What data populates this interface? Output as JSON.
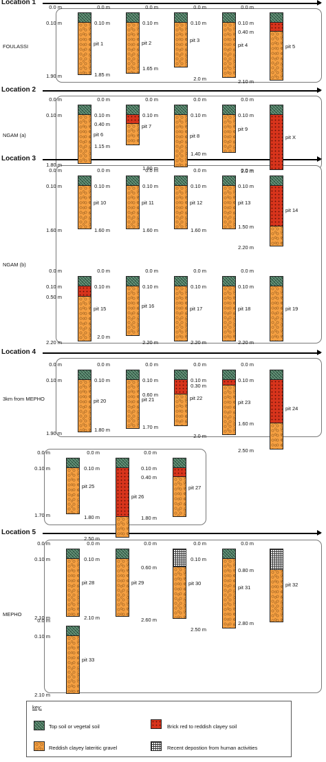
{
  "legend": {
    "title": "key:",
    "items": [
      {
        "kind": "topsoil",
        "label": "Top soil or vegetal soil"
      },
      {
        "kind": "clay",
        "label": "Brick red to reddish clayey soil"
      },
      {
        "kind": "gravel",
        "label": "Reddish clayey lateritic gravel"
      },
      {
        "kind": "recent",
        "label": "Recent depostion from human activities"
      }
    ]
  },
  "locations": [
    {
      "title": "Location 1",
      "site": "FOULASSI",
      "pits": [
        {
          "name": "pit 1",
          "labels": [
            "0.0 m",
            "0.10 m",
            "1.90 m"
          ],
          "layers": [
            {
              "kind": "topsoil",
              "to": 0.1
            },
            {
              "kind": "gravel",
              "to": 1.9
            }
          ]
        },
        {
          "name": "pit 2",
          "labels": [
            "0.0 m",
            "0.10 m",
            "1.85 m"
          ],
          "layers": [
            {
              "kind": "topsoil",
              "to": 0.1
            },
            {
              "kind": "gravel",
              "to": 1.85
            }
          ]
        },
        {
          "name": "pit 3",
          "labels": [
            "0.0 m",
            "0.10 m",
            "1.65 m"
          ],
          "layers": [
            {
              "kind": "topsoil",
              "to": 0.1
            },
            {
              "kind": "gravel",
              "to": 1.65
            }
          ]
        },
        {
          "name": "pit 4",
          "labels": [
            "0.0 m",
            "0.10 m",
            "2.0 m"
          ],
          "layers": [
            {
              "kind": "topsoil",
              "to": 0.1
            },
            {
              "kind": "gravel",
              "to": 2.0
            }
          ]
        },
        {
          "name": "pit 5",
          "labels": [
            "0.0 m",
            "0.10 m",
            "0.40 m",
            "2.10 m"
          ],
          "layers": [
            {
              "kind": "topsoil",
              "to": 0.1
            },
            {
              "kind": "clay",
              "to": 0.4
            },
            {
              "kind": "gravel",
              "to": 2.1
            }
          ]
        }
      ]
    },
    {
      "title": "Location 2",
      "site": "NGAM (a)",
      "pits": [
        {
          "name": "pit 6",
          "labels": [
            "0.0 m",
            "0.10 m",
            "1.80 m"
          ],
          "layers": [
            {
              "kind": "topsoil",
              "to": 0.1
            },
            {
              "kind": "gravel",
              "to": 1.8
            }
          ]
        },
        {
          "name": "pit 7",
          "labels": [
            "0.0 m",
            "0.10 m",
            "0.40 m",
            "1.15 m"
          ],
          "layers": [
            {
              "kind": "topsoil",
              "to": 0.1
            },
            {
              "kind": "clay",
              "to": 0.4
            },
            {
              "kind": "gravel",
              "to": 1.15
            }
          ]
        },
        {
          "name": "pit 8",
          "labels": [
            "0.0 m",
            "0.10 m",
            "1.90 m"
          ],
          "layers": [
            {
              "kind": "topsoil",
              "to": 0.1
            },
            {
              "kind": "gravel",
              "to": 1.9
            }
          ]
        },
        {
          "name": "pit 9",
          "labels": [
            "0.0 m",
            "0.10 m",
            "1.40 m"
          ],
          "layers": [
            {
              "kind": "topsoil",
              "to": 0.1
            },
            {
              "kind": "gravel",
              "to": 1.4
            }
          ]
        },
        {
          "name": "pit X",
          "labels": [
            "0.0 m",
            "0.10 m",
            "2.0 m"
          ],
          "layers": [
            {
              "kind": "topsoil",
              "to": 0.1
            },
            {
              "kind": "clay",
              "to": 2.0
            }
          ]
        }
      ]
    },
    {
      "title": "Location 3",
      "site": "NGAM (b)",
      "pits": [
        {
          "name": "pit 10",
          "labels": [
            "0.0 m",
            "0.10 m",
            "1.60 m"
          ],
          "layers": [
            {
              "kind": "topsoil",
              "to": 0.1
            },
            {
              "kind": "gravel",
              "to": 1.6
            }
          ]
        },
        {
          "name": "pit 11",
          "labels": [
            "0.0 m",
            "0.10 m",
            "1.60 m"
          ],
          "layers": [
            {
              "kind": "topsoil",
              "to": 0.1
            },
            {
              "kind": "gravel",
              "to": 1.6
            }
          ]
        },
        {
          "name": "pit 12",
          "labels": [
            "0.0 m",
            "0.10 m",
            "1.60 m"
          ],
          "layers": [
            {
              "kind": "topsoil",
              "to": 0.1
            },
            {
              "kind": "gravel",
              "to": 1.6
            }
          ]
        },
        {
          "name": "pit 13",
          "labels": [
            "0.0 m",
            "0.10 m",
            "1.60 m"
          ],
          "layers": [
            {
              "kind": "topsoil",
              "to": 0.1
            },
            {
              "kind": "gravel",
              "to": 1.6
            }
          ]
        },
        {
          "name": "pit 14",
          "labels": [
            "0.0 m",
            "0.10 m",
            "1.50 m",
            "2.20 m"
          ],
          "layers": [
            {
              "kind": "topsoil",
              "to": 0.1
            },
            {
              "kind": "clay",
              "to": 1.5
            },
            {
              "kind": "gravel",
              "to": 2.2
            }
          ]
        },
        {
          "name": "pit 15",
          "labels": [
            "0.0 m",
            "0.10 m",
            "0.50 m",
            "2.20 m"
          ],
          "layers": [
            {
              "kind": "topsoil",
              "to": 0.1
            },
            {
              "kind": "clay",
              "to": 0.5
            },
            {
              "kind": "gravel",
              "to": 2.2
            }
          ]
        },
        {
          "name": "pit 16",
          "labels": [
            "0.0 m",
            "0.10 m",
            "2.0 m"
          ],
          "layers": [
            {
              "kind": "topsoil",
              "to": 0.1
            },
            {
              "kind": "gravel",
              "to": 2.0
            }
          ]
        },
        {
          "name": "pit 17",
          "labels": [
            "0.0 m",
            "0.10 m",
            "2.20 m"
          ],
          "layers": [
            {
              "kind": "topsoil",
              "to": 0.1
            },
            {
              "kind": "gravel",
              "to": 2.2
            }
          ]
        },
        {
          "name": "pit 18",
          "labels": [
            "0.0 m",
            "0.10 m",
            "2.20 m"
          ],
          "layers": [
            {
              "kind": "topsoil",
              "to": 0.1
            },
            {
              "kind": "gravel",
              "to": 2.2
            }
          ]
        },
        {
          "name": "pit 19",
          "labels": [
            "0.0 m",
            "0.10 m",
            "2.20 m"
          ],
          "layers": [
            {
              "kind": "topsoil",
              "to": 0.1
            },
            {
              "kind": "gravel",
              "to": 2.2
            }
          ]
        }
      ]
    },
    {
      "title": "Location 4",
      "site": "3km from MEPHO",
      "pits": [
        {
          "name": "pit 20",
          "labels": [
            "0.0 m",
            "0.10 m",
            "1.90 m"
          ],
          "layers": [
            {
              "kind": "topsoil",
              "to": 0.1
            },
            {
              "kind": "gravel",
              "to": 1.9
            }
          ]
        },
        {
          "name": "pit 21",
          "labels": [
            "0.0 m",
            "0.10 m",
            "1.80 m"
          ],
          "layers": [
            {
              "kind": "topsoil",
              "to": 0.1
            },
            {
              "kind": "gravel",
              "to": 1.8
            }
          ]
        },
        {
          "name": "pit 22",
          "labels": [
            "0.0 m",
            "0.10 m",
            "0.60 m",
            "1.70 m"
          ],
          "layers": [
            {
              "kind": "topsoil",
              "to": 0.1
            },
            {
              "kind": "clay",
              "to": 0.6
            },
            {
              "kind": "gravel",
              "to": 1.7
            }
          ]
        },
        {
          "name": "pit 23",
          "labels": [
            "0.0 m",
            "0.10 m",
            "0.30 m",
            "2.0 m"
          ],
          "layers": [
            {
              "kind": "topsoil",
              "to": 0.1
            },
            {
              "kind": "clay",
              "to": 0.3
            },
            {
              "kind": "gravel",
              "to": 2.0
            }
          ]
        },
        {
          "name": "pit 24",
          "labels": [
            "0.0 m",
            "0.10 m",
            "1.60 m",
            "2.50 m"
          ],
          "layers": [
            {
              "kind": "topsoil",
              "to": 0.1
            },
            {
              "kind": "clay",
              "to": 1.6
            },
            {
              "kind": "gravel",
              "to": 2.5
            }
          ]
        },
        {
          "name": "pit 25",
          "labels": [
            "0.0 m",
            "0.10 m",
            "1.70 m"
          ],
          "layers": [
            {
              "kind": "topsoil",
              "to": 0.1
            },
            {
              "kind": "gravel",
              "to": 1.7
            }
          ]
        },
        {
          "name": "pit 26",
          "labels": [
            "0.0 m",
            "0.10 m",
            "1.80 m",
            "2.50 m"
          ],
          "layers": [
            {
              "kind": "topsoil",
              "to": 0.1
            },
            {
              "kind": "clay",
              "to": 1.8
            },
            {
              "kind": "gravel",
              "to": 2.5
            }
          ]
        },
        {
          "name": "pit 27",
          "labels": [
            "0.0 m",
            "0.10 m",
            "0.40 m",
            "1.80 m"
          ],
          "layers": [
            {
              "kind": "topsoil",
              "to": 0.1
            },
            {
              "kind": "clay",
              "to": 0.4
            },
            {
              "kind": "gravel",
              "to": 1.8
            }
          ]
        }
      ]
    },
    {
      "title": "Location 5",
      "site": "MEPHO",
      "pits": [
        {
          "name": "pit 28",
          "labels": [
            "0.0 m",
            "0.10 m",
            "2.10 m"
          ],
          "layers": [
            {
              "kind": "topsoil",
              "to": 0.1
            },
            {
              "kind": "gravel",
              "to": 2.1
            }
          ]
        },
        {
          "name": "pit 29",
          "labels": [
            "0.0 m",
            "0.10 m",
            "2.10 m"
          ],
          "layers": [
            {
              "kind": "topsoil",
              "to": 0.1
            },
            {
              "kind": "gravel",
              "to": 2.1
            }
          ]
        },
        {
          "name": "pit 30",
          "labels": [
            "0.0 m",
            "0.60 m",
            "2.60 m"
          ],
          "layers": [
            {
              "kind": "recent",
              "to": 0.6
            },
            {
              "kind": "gravel",
              "to": 2.6
            }
          ]
        },
        {
          "name": "pit 31",
          "labels": [
            "0.0 m",
            "0.10 m",
            "2.50 m"
          ],
          "layers": [
            {
              "kind": "topsoil",
              "to": 0.1
            },
            {
              "kind": "gravel",
              "to": 2.5
            }
          ]
        },
        {
          "name": "pit 32",
          "labels": [
            "0.0 m",
            "0.80 m",
            "2.80 m"
          ],
          "layers": [
            {
              "kind": "recent",
              "to": 0.8
            },
            {
              "kind": "gravel",
              "to": 2.8
            }
          ]
        },
        {
          "name": "pit 33",
          "labels": [
            "0.0 m",
            "0.10 m",
            "2.10 m"
          ],
          "layers": [
            {
              "kind": "topsoil",
              "to": 0.1
            },
            {
              "kind": "gravel",
              "to": 2.1
            }
          ]
        }
      ]
    }
  ]
}
